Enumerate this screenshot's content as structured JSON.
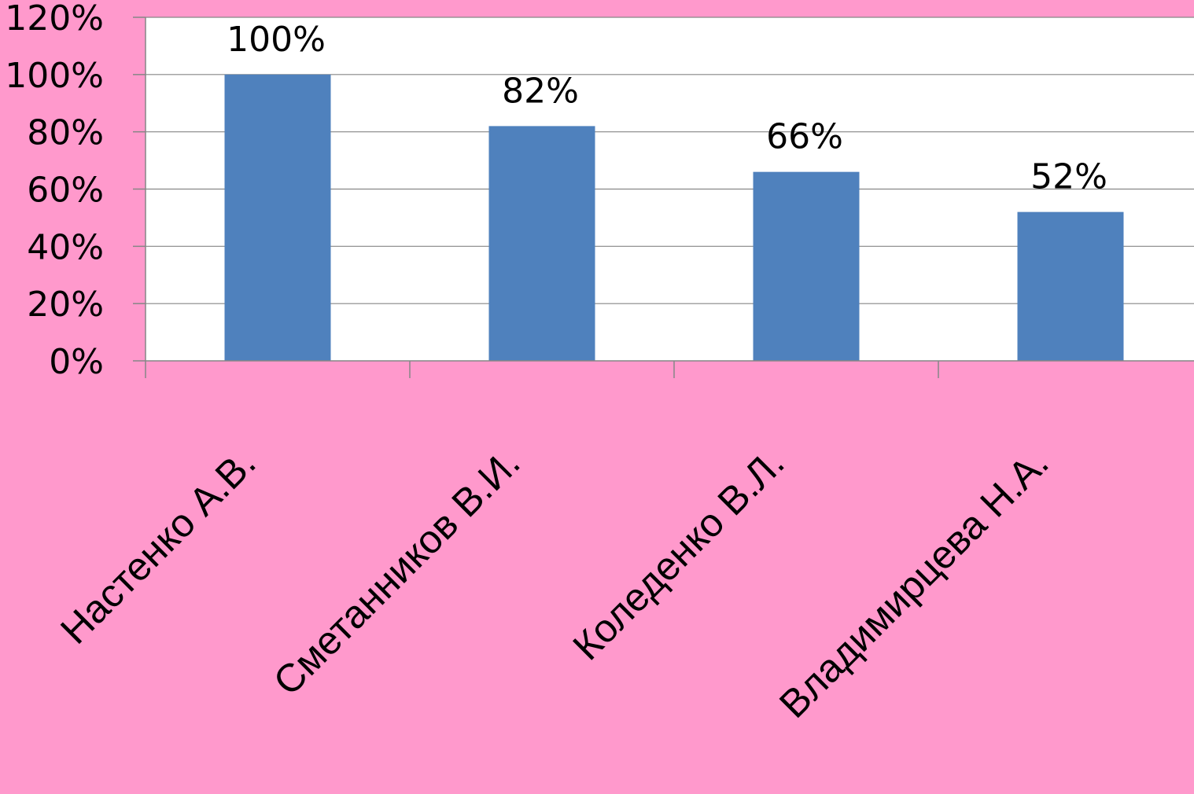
{
  "chart_data": {
    "type": "bar",
    "categories": [
      "Настенко А.В.",
      "Сметанников В.И.",
      "Коледенко В.Л.",
      "Владимирцева Н.А."
    ],
    "values": [
      100,
      82,
      66,
      52
    ],
    "value_labels": [
      "100%",
      "82%",
      "66%",
      "52%"
    ],
    "ylim": [
      0,
      120
    ],
    "yticks": [
      0,
      20,
      40,
      60,
      80,
      100,
      120
    ],
    "ytick_labels": [
      "0%",
      "20%",
      "40%",
      "60%",
      "80%",
      "100%",
      "120%"
    ],
    "title": "",
    "xlabel": "",
    "ylabel": "",
    "grid": true,
    "legend": "none",
    "colors": {
      "page_background": "#FF99CC",
      "plot_background": "#FFFFFF",
      "bar": "#4F81BD",
      "gridline": "#868686"
    }
  }
}
